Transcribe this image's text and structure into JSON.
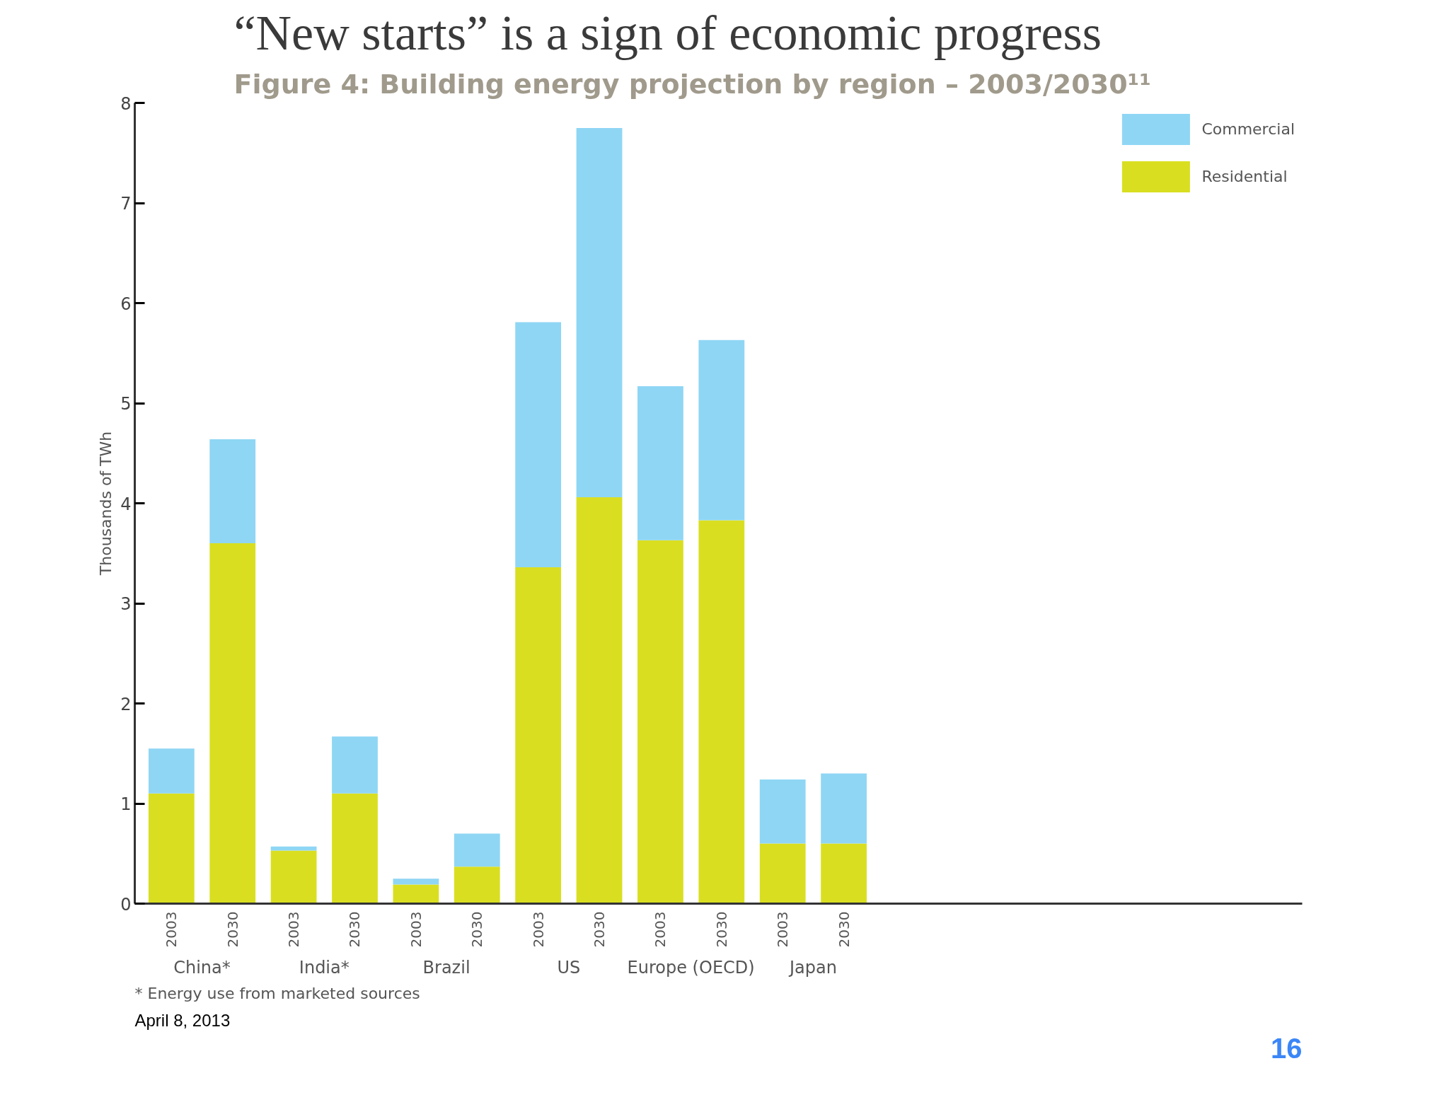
{
  "chart_data": {
    "type": "bar",
    "stacked": true,
    "title": "“New starts” is a sign of economic progress",
    "subtitle": "Figure 4: Building energy projection by region – 2003/2030¹¹",
    "ylabel": "Thousands of TWh",
    "categories": [
      "2003",
      "2030",
      "2003",
      "2030",
      "2003",
      "2030",
      "2003",
      "2030",
      "2003",
      "2030",
      "2003",
      "2030"
    ],
    "series": [
      {
        "name": "Residential",
        "color": "#d9df20",
        "values": [
          1.1,
          3.6,
          0.53,
          1.1,
          0.19,
          0.37,
          3.36,
          4.06,
          3.63,
          3.83,
          0.6,
          0.6
        ]
      },
      {
        "name": "Commercial",
        "color": "#8fd6f4",
        "values": [
          0.45,
          1.04,
          0.04,
          0.57,
          0.06,
          0.33,
          2.45,
          3.69,
          1.54,
          1.8,
          0.64,
          0.7
        ]
      }
    ],
    "ylim": [
      0,
      8
    ],
    "yticks": [
      0,
      1,
      2,
      3,
      4,
      5,
      6,
      7,
      8
    ],
    "legend": "top right",
    "grid": false,
    "annotations": [
      "China*",
      "India*",
      "Brazil",
      "US",
      "Europe (OECD)",
      "Japan",
      "* Energy use from marketed sources",
      "April 8, 2013",
      "16"
    ]
  }
}
